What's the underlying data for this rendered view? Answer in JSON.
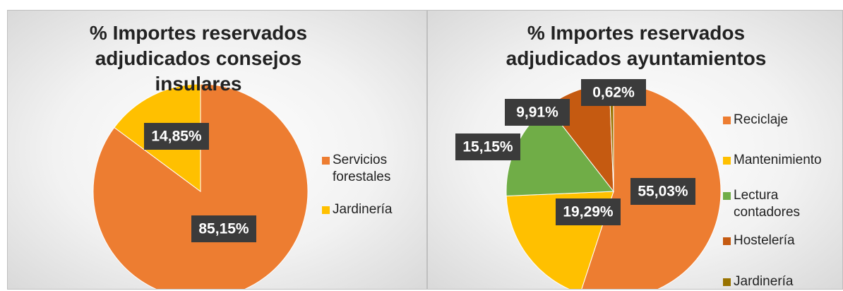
{
  "chart_data": [
    {
      "type": "pie",
      "title": "% Importes reservados adjudicados consejos insulares",
      "categories": [
        "Servicios forestales",
        "Jardinería"
      ],
      "values": [
        85.15,
        14.85
      ],
      "value_labels": [
        "85,15%",
        "14,85%"
      ],
      "colors": [
        "#ED7D31",
        "#FFC000"
      ]
    },
    {
      "type": "pie",
      "title": "% Importes reservados adjudicados ayuntamientos",
      "categories": [
        "Reciclaje",
        "Mantenimiento",
        "Lectura contadores",
        "Hostelería",
        "Jardinería"
      ],
      "values": [
        55.03,
        19.29,
        15.15,
        9.91,
        0.62
      ],
      "value_labels": [
        "55,03%",
        "19,29%",
        "15,15%",
        "9,91%",
        "0,62%"
      ],
      "colors": [
        "#ED7D31",
        "#FFC000",
        "#70AD47",
        "#C55A11",
        "#997300"
      ]
    }
  ]
}
